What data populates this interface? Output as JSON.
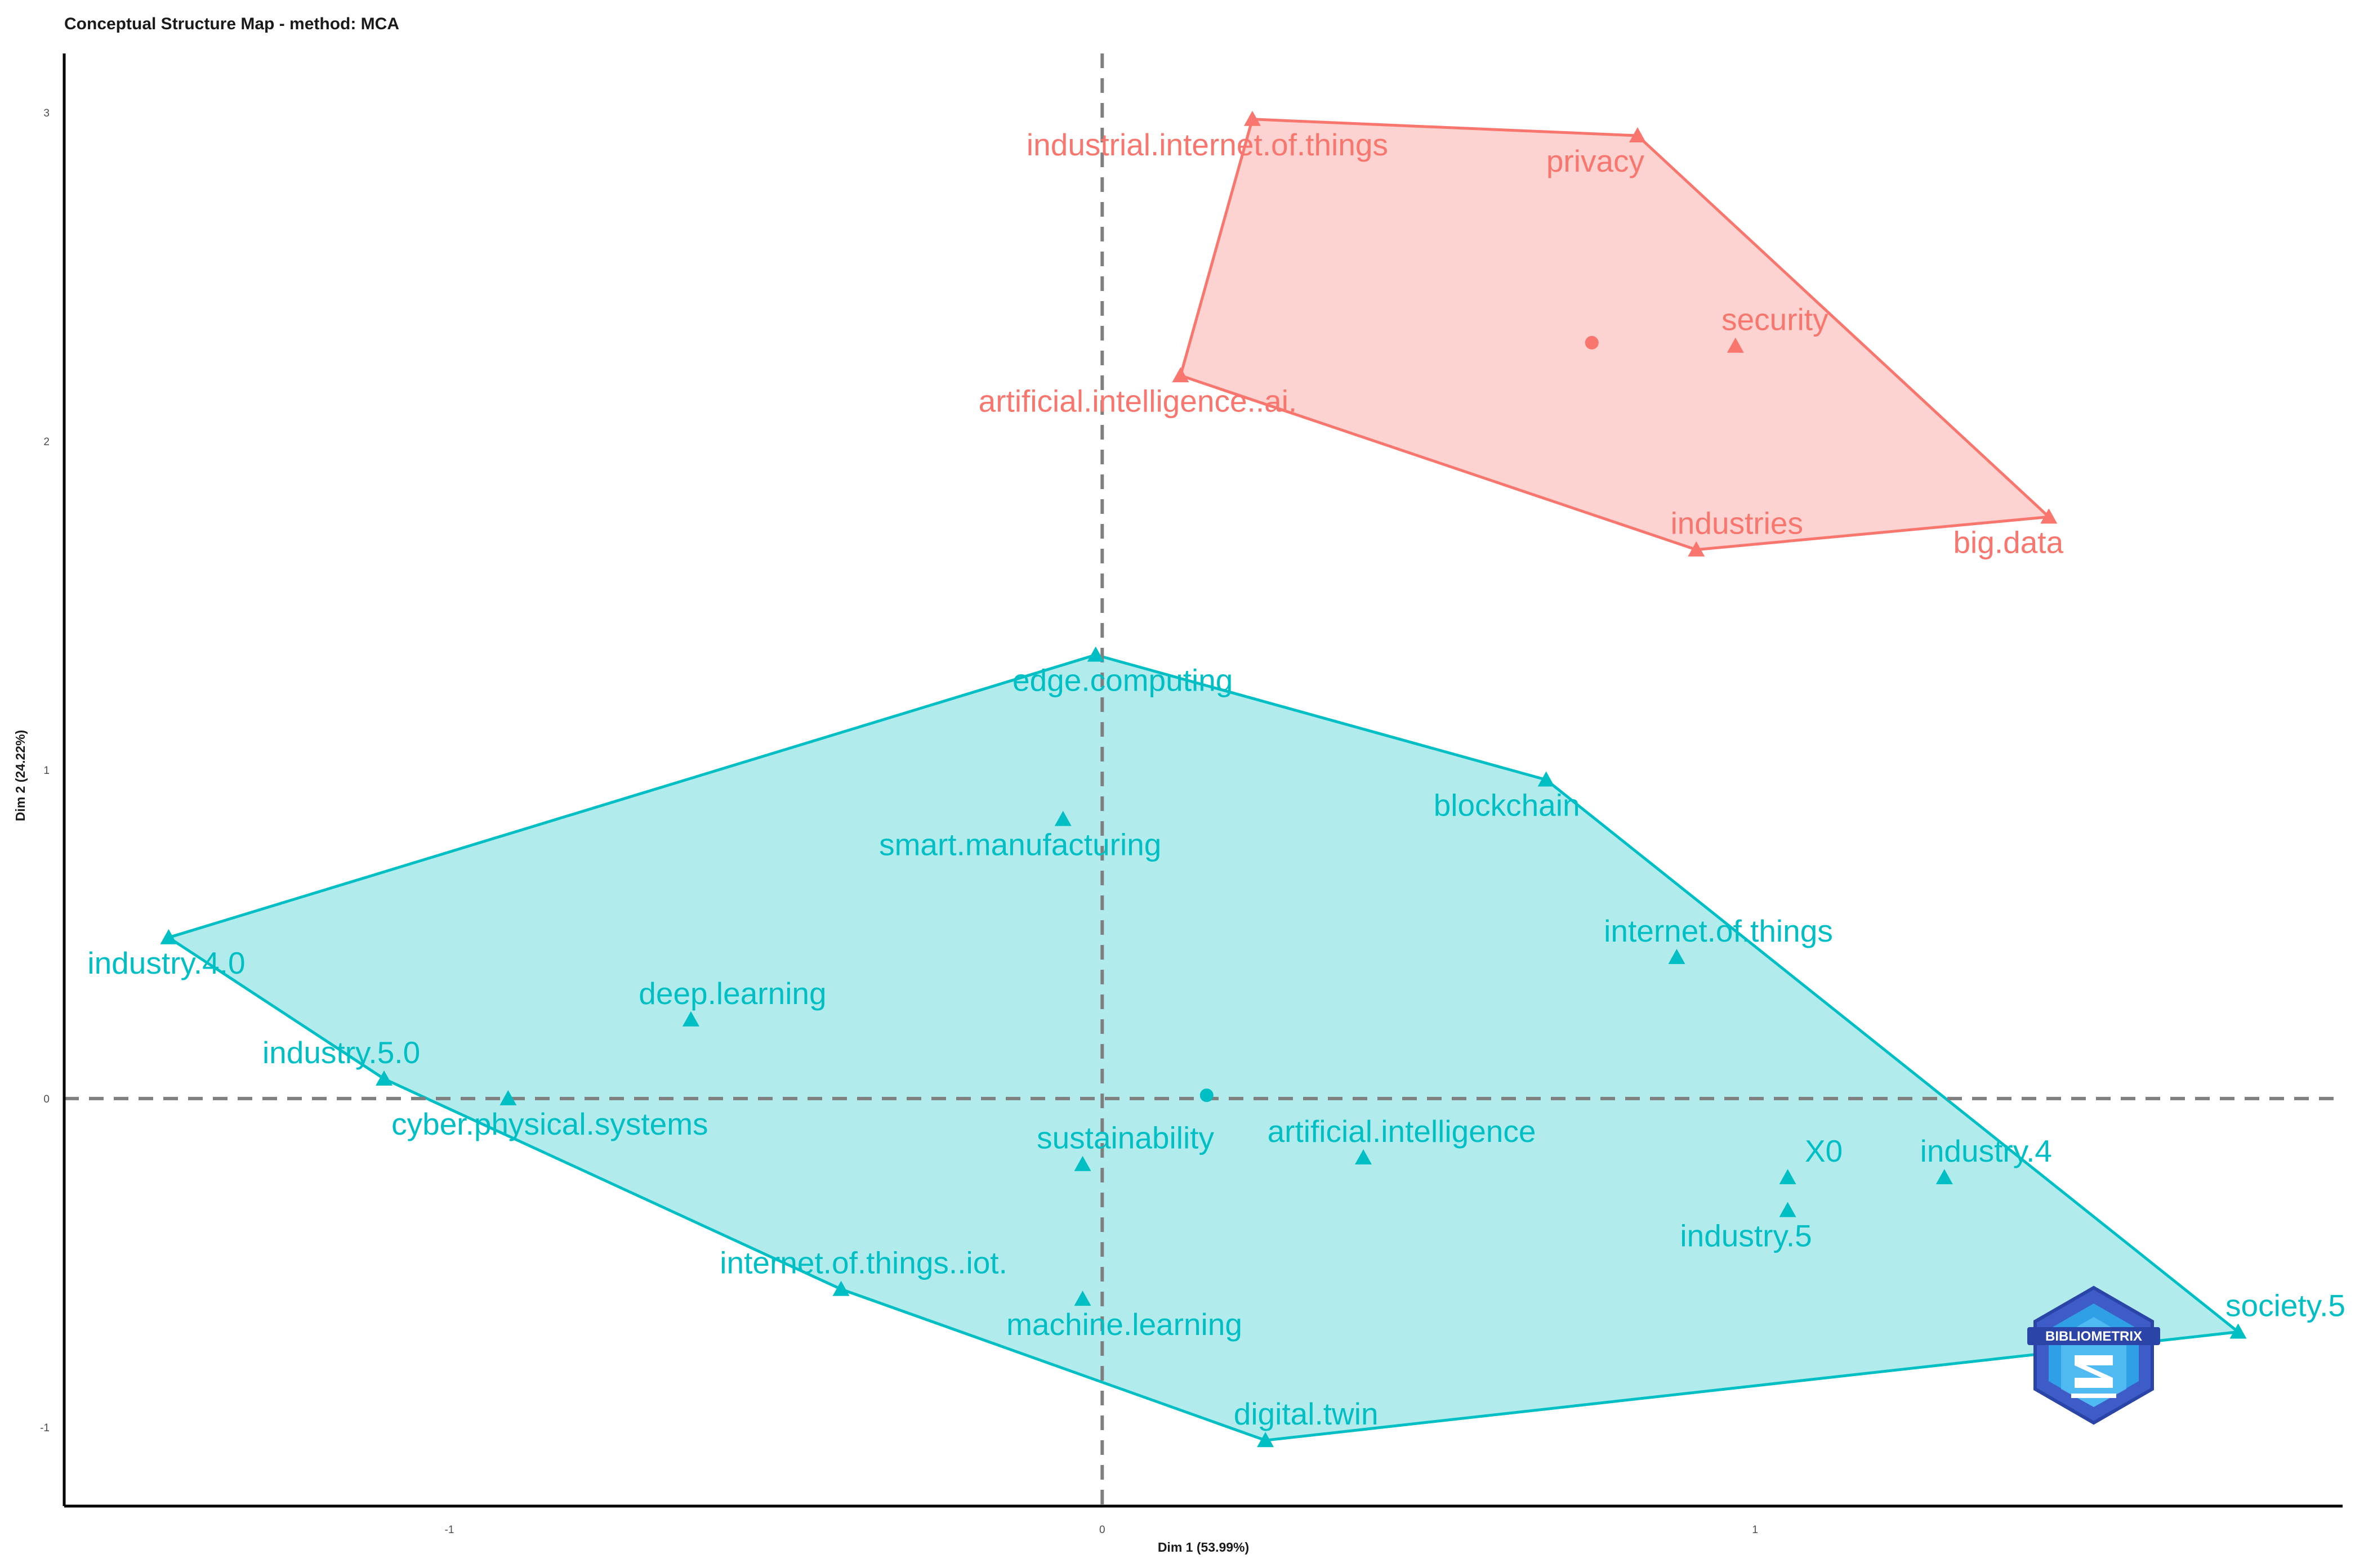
{
  "chart_data": {
    "type": "scatter",
    "title": "Conceptual Structure Map - method: MCA",
    "xlabel": "Dim 1 (53.99%)",
    "ylabel": "Dim 2 (24.22%)",
    "xlim": [
      -1.59,
      1.9
    ],
    "ylim": [
      -1.24,
      3.18
    ],
    "xticks": [
      -1,
      0,
      1
    ],
    "yticks": [
      -1,
      0,
      1,
      2,
      3
    ],
    "reference_lines": {
      "x": 0,
      "y": 0,
      "style": "dashed"
    },
    "grid": false,
    "clusters": [
      {
        "color": "#F8766D",
        "fill": "#FCD3D0",
        "centroid": [
          0.75,
          2.3
        ],
        "hull": [
          "industrial.internet.of.things",
          "privacy",
          "big.data",
          "industries",
          "artificial.intelligence..ai."
        ],
        "points": [
          {
            "label": "industrial.internet.of.things",
            "x": 0.23,
            "y": 2.98
          },
          {
            "label": "privacy",
            "x": 0.82,
            "y": 2.93
          },
          {
            "label": "security",
            "x": 0.97,
            "y": 2.29
          },
          {
            "label": "artificial.intelligence..ai.",
            "x": 0.12,
            "y": 2.2
          },
          {
            "label": "industries",
            "x": 0.91,
            "y": 1.67
          },
          {
            "label": "big.data",
            "x": 1.45,
            "y": 1.77
          }
        ]
      },
      {
        "color": "#00BFC4",
        "fill": "#B2EBEC",
        "centroid": [
          0.16,
          0.01
        ],
        "hull": [
          "edge.computing",
          "blockchain",
          "society.5",
          "digital.twin",
          "internet.of.things..iot.",
          "industry.5.0",
          "industry.4.0"
        ],
        "points": [
          {
            "label": "edge.computing",
            "x": -0.01,
            "y": 1.35
          },
          {
            "label": "blockchain",
            "x": 0.68,
            "y": 0.97
          },
          {
            "label": "smart.manufacturing",
            "x": -0.06,
            "y": 0.85
          },
          {
            "label": "industry.4.0",
            "x": -1.43,
            "y": 0.49
          },
          {
            "label": "internet.of.things",
            "x": 0.88,
            "y": 0.43
          },
          {
            "label": "deep.learning",
            "x": -0.63,
            "y": 0.24
          },
          {
            "label": "industry.5.0",
            "x": -1.1,
            "y": 0.06
          },
          {
            "label": "cyber.physical.systems",
            "x": -0.91,
            "y": 0.0
          },
          {
            "label": "sustainability",
            "x": -0.03,
            "y": -0.2
          },
          {
            "label": "artificial.intelligence",
            "x": 0.4,
            "y": -0.18
          },
          {
            "label": "X0",
            "x": 1.05,
            "y": -0.24
          },
          {
            "label": "industry.4",
            "x": 1.29,
            "y": -0.24
          },
          {
            "label": "industry.5",
            "x": 1.05,
            "y": -0.34
          },
          {
            "label": "internet.of.things..iot.",
            "x": -0.4,
            "y": -0.58
          },
          {
            "label": "machine.learning",
            "x": -0.03,
            "y": -0.61
          },
          {
            "label": "society.5",
            "x": 1.74,
            "y": -0.71
          },
          {
            "label": "digital.twin",
            "x": 0.25,
            "y": -1.04
          }
        ]
      }
    ]
  },
  "logo": {
    "text": "BIBLIOMETRIX"
  }
}
